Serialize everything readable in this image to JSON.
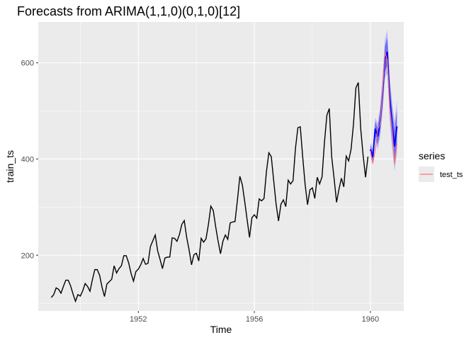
{
  "chart_data": {
    "type": "line",
    "title": "Forecasts from ARIMA(1,1,0)(0,1,0)[12]",
    "xlabel": "Time",
    "ylabel": "train_ts",
    "xlim": [
      1948.55,
      1961.15
    ],
    "ylim": [
      84,
      685
    ],
    "x_ticks": [
      1952,
      1956,
      1960
    ],
    "y_ticks": [
      200,
      400,
      600
    ],
    "grid": true,
    "legend": {
      "title": "series",
      "position": "right",
      "entries": [
        "test_ts"
      ]
    },
    "colors": {
      "panel": "#ebebeb",
      "grid": "#ffffff",
      "train": "#000000",
      "forecast": "#0000ff",
      "interval_95": "#b8b8ff",
      "interval_80": "#6f6ff2",
      "test": "#f8766d"
    },
    "train": {
      "name": "train_ts",
      "start": 1949.0,
      "frequency": 12,
      "values": [
        112,
        118,
        132,
        129,
        121,
        135,
        148,
        148,
        136,
        119,
        104,
        118,
        115,
        126,
        141,
        135,
        125,
        149,
        170,
        170,
        158,
        133,
        114,
        140,
        145,
        150,
        178,
        163,
        172,
        178,
        199,
        199,
        184,
        162,
        146,
        166,
        171,
        180,
        193,
        181,
        183,
        218,
        230,
        242,
        209,
        191,
        172,
        194,
        196,
        196,
        236,
        235,
        229,
        243,
        264,
        272,
        237,
        211,
        180,
        201,
        204,
        188,
        235,
        227,
        234,
        264,
        302,
        293,
        259,
        229,
        203,
        229,
        242,
        233,
        267,
        269,
        270,
        315,
        364,
        347,
        312,
        274,
        237,
        278,
        284,
        277,
        317,
        313,
        318,
        374,
        413,
        405,
        355,
        306,
        271,
        306,
        315,
        301,
        356,
        348,
        355,
        422,
        465,
        467,
        404,
        347,
        305,
        336,
        340,
        318,
        362,
        348,
        363,
        435,
        491,
        505,
        404,
        359,
        310,
        337,
        360,
        342,
        406,
        396,
        420,
        472,
        548,
        559,
        463,
        407,
        362,
        405
      ]
    },
    "forecast": {
      "name": "forecast",
      "start": 1960.0,
      "frequency": 12,
      "values": [
        420,
        404,
        463,
        447,
        475,
        531,
        608,
        623,
        525,
        470,
        426,
        468
      ],
      "lo80": [
        411,
        394,
        448,
        430,
        455,
        508,
        582,
        594,
        496,
        439,
        393,
        433
      ],
      "hi80": [
        429,
        414,
        478,
        464,
        495,
        554,
        634,
        652,
        554,
        501,
        459,
        503
      ],
      "lo95": [
        406,
        388,
        440,
        420,
        444,
        496,
        568,
        578,
        480,
        422,
        375,
        414
      ],
      "hi95": [
        434,
        420,
        486,
        474,
        506,
        566,
        648,
        668,
        570,
        518,
        477,
        522
      ]
    },
    "test": {
      "name": "test_ts",
      "start": 1960.0,
      "frequency": 12,
      "values": [
        417,
        391,
        419,
        461,
        472,
        535,
        622,
        606,
        508,
        461,
        390,
        432
      ]
    }
  }
}
